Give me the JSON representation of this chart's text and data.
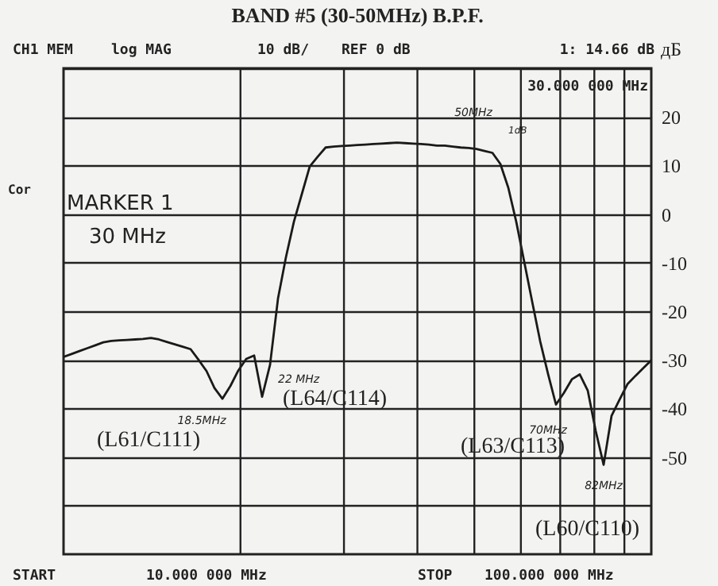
{
  "chart_data": {
    "type": "line",
    "title": "BAND #5 (30-50MHz) B.P.F.",
    "ylabel": "дБ",
    "categories": [
      null,
      null,
      null,
      null,
      null,
      null,
      null,
      null,
      null,
      null,
      null,
      null,
      null,
      null,
      null,
      null,
      null,
      null,
      null,
      null,
      null,
      null,
      null,
      null,
      null,
      null,
      null,
      null,
      null,
      null,
      null,
      null,
      null,
      null,
      null,
      null,
      null,
      null,
      null,
      null,
      null,
      null,
      null,
      null,
      null,
      null,
      null,
      null,
      null,
      null,
      null,
      null,
      null,
      null,
      null,
      null,
      null,
      null,
      null,
      null,
      null,
      null,
      null,
      null,
      null,
      null,
      null,
      null,
      null,
      null,
      null,
      null,
      null,
      null,
      null
    ],
    "values": [
      -29.4,
      -28.8,
      -28.2,
      -27.6,
      -27.0,
      -26.4,
      -26.1,
      -26.0,
      -25.9,
      -25.8,
      -25.7,
      -25.5,
      -25.8,
      -26.3,
      -26.8,
      -27.3,
      -27.8,
      -30.0,
      -32.3,
      -35.8,
      -38.0,
      -35.4,
      -32.2,
      -29.8,
      -29.1,
      -37.6,
      -31.0,
      -17.4,
      -8.9,
      -1.6,
      4.1,
      9.8,
      11.8,
      13.7,
      13.9,
      14.0,
      14.1,
      14.2,
      14.3,
      14.4,
      14.5,
      14.6,
      14.7,
      14.6,
      14.5,
      14.4,
      14.3,
      14.1,
      14.1,
      13.9,
      13.7,
      13.6,
      13.4,
      13.0,
      12.6,
      10.3,
      5.4,
      -1.6,
      -9.8,
      -18.0,
      -26.1,
      -32.9,
      -39.2,
      -36.8,
      -34.0,
      -33.0,
      -36.3,
      -44.6,
      -51.6,
      -41.5,
      -38.2,
      -35.0,
      -33.3,
      -31.7,
      -30.1
    ],
    "color": "#1a1a1a",
    "line_style": "solid",
    "grid": true,
    "tick_labels": "y",
    "ylim": [
      -70,
      30
    ],
    "yticks": [
      {
        "value": 30,
        "label": null
      },
      20,
      10,
      0,
      -10,
      -20,
      -30,
      -40,
      -50,
      {
        "value": -60,
        "label": null
      }
    ],
    "annotations": [
      "CH1 MEM",
      "log MAG",
      "10 dB/",
      "REF 0 dB",
      "1: 14.66 dB",
      "30.000 000 MHz",
      "Cor",
      "MARKER 1",
      "30 MHz",
      "START",
      "10.000 000 MHz",
      "STOP",
      "100.000 000 MHz",
      "18.5MHz",
      "22 MHz",
      "50MHz",
      "1dB",
      "70MHz",
      "82MHz",
      "(L61/C111)",
      "(L64/C114)",
      "(L63/C113)",
      "(L60/C110)"
    ]
  }
}
